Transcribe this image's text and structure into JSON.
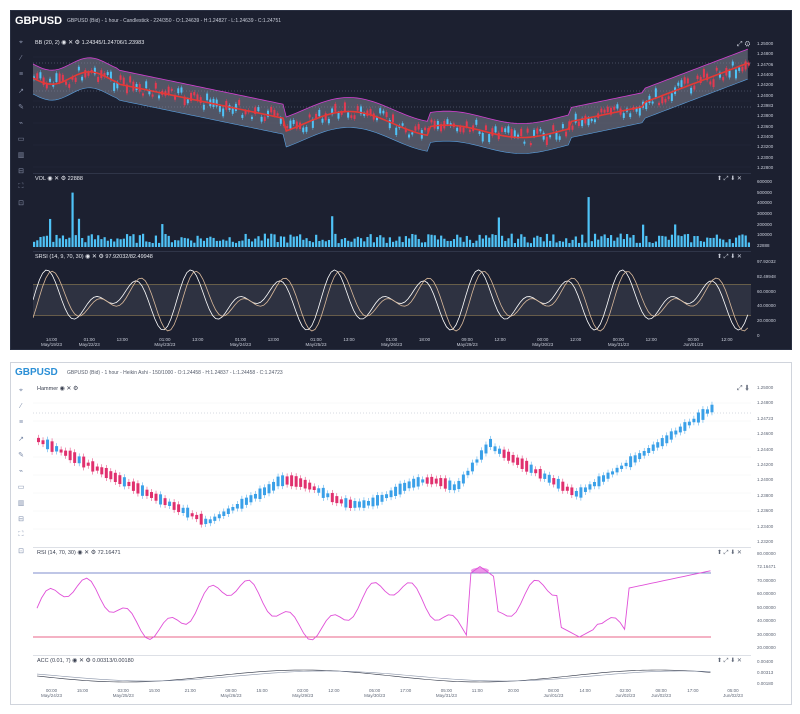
{
  "top_panel": {
    "symbol": "GBPUSD",
    "info": "GBPUSD (Bid) - 1 hour - Candlestick - 224/350 - O:1.24639 - H:1.24827 - L:1.24639 - C:1.24751",
    "indicator1": {
      "label": "BB (20, 2)",
      "values": "1.24345/1.24706/1.23983"
    },
    "indicator2": {
      "label": "VOL",
      "value": "22888"
    },
    "indicator3": {
      "label": "SRSI (14, 9, 70, 30)",
      "values": "97.92032/82.49948"
    },
    "price_axis": [
      "1.25000",
      "1.24800",
      "1.24706",
      "1.24400",
      "1.24200",
      "1.24000",
      "1.23983",
      "1.23800",
      "1.23600",
      "1.23400",
      "1.23200",
      "1.23000",
      "1.22800"
    ],
    "price_badges": {
      "close": "1.24751",
      "upper": "1.24706",
      "lower": "1.23983"
    },
    "volume_axis": [
      "600000",
      "500000",
      "400000",
      "300000",
      "200000",
      "100000",
      "22888"
    ],
    "srsi_axis": [
      "97.92032",
      "82.49948",
      "60.00000",
      "40.00000",
      "20.00000",
      "0"
    ],
    "x_labels": [
      {
        "t": "14:00",
        "d": "May/19/23"
      },
      {
        "t": "01:00",
        "d": "May/22/23"
      },
      {
        "t": "13:00",
        "d": ""
      },
      {
        "t": "01:00",
        "d": "May/23/23"
      },
      {
        "t": "13:00",
        "d": ""
      },
      {
        "t": "01:00",
        "d": "May/24/23"
      },
      {
        "t": "13:00",
        "d": ""
      },
      {
        "t": "01:00",
        "d": "May/25/23"
      },
      {
        "t": "13:00",
        "d": ""
      },
      {
        "t": "01:00",
        "d": "May/26/23"
      },
      {
        "t": "18:00",
        "d": ""
      },
      {
        "t": "09:00",
        "d": "May/29/23"
      },
      {
        "t": "12:00",
        "d": ""
      },
      {
        "t": "00:00",
        "d": "May/30/23"
      },
      {
        "t": "12:00",
        "d": ""
      },
      {
        "t": "00:00",
        "d": "May/31/23"
      },
      {
        "t": "12:00",
        "d": ""
      },
      {
        "t": "00:00",
        "d": "Jun/01/23"
      },
      {
        "t": "12:00",
        "d": ""
      }
    ],
    "colors": {
      "bg": "#1c2030",
      "bullish": "#4fc3f7",
      "bearish": "#e53950",
      "middle_band": "#e53935",
      "outer_band": "#d43fd2",
      "volume": "#4fc3f7"
    }
  },
  "bottom_panel": {
    "symbol": "GBPUSD",
    "info": "GBPUSD (Bid) - 1 hour - Heikin Ashi - 150/1000 - O:1.24458 - H:1.24837 - L:1.24458 - C:1.24723",
    "indicator1": {
      "label": "Hammer"
    },
    "indicator2": {
      "label": "RSI (14, 70, 30)",
      "value": "72.16471"
    },
    "indicator3": {
      "label": "ACC (0.01, 7)",
      "values": "0.00313/0.00180"
    },
    "price_axis": [
      "1.25000",
      "1.24800",
      "1.24723",
      "1.24600",
      "1.24400",
      "1.24200",
      "1.24000",
      "1.23800",
      "1.23600",
      "1.23400",
      "1.23200"
    ],
    "price_badge": "1.24723",
    "rsi_axis": [
      "80.00000",
      "72.16471",
      "70.00000",
      "60.00000",
      "50.00000",
      "40.00000",
      "30.00000",
      "20.00000"
    ],
    "acc_axis": [
      "0.00400",
      "0.00313",
      "0.00180"
    ],
    "x_labels": [
      {
        "t": "00:00",
        "d": "May/24/23"
      },
      {
        "t": "15:00",
        "d": ""
      },
      {
        "t": "03:00",
        "d": "May/25/23"
      },
      {
        "t": "15:00",
        "d": ""
      },
      {
        "t": "21:00",
        "d": ""
      },
      {
        "t": "09:00",
        "d": "May/26/23"
      },
      {
        "t": "15:00",
        "d": ""
      },
      {
        "t": "03:00",
        "d": "May/29/23"
      },
      {
        "t": "12:00",
        "d": ""
      },
      {
        "t": "05:00",
        "d": "May/30/23"
      },
      {
        "t": "17:00",
        "d": ""
      },
      {
        "t": "05:00",
        "d": "May/31/23"
      },
      {
        "t": "11:00",
        "d": ""
      },
      {
        "t": "20:00",
        "d": ""
      },
      {
        "t": "08:00",
        "d": "Jun/01/23"
      },
      {
        "t": "14:00",
        "d": ""
      },
      {
        "t": "02:00",
        "d": "Jun/02/23"
      },
      {
        "t": "08:00",
        "d": "Jun/02/23"
      },
      {
        "t": "17:00",
        "d": ""
      },
      {
        "t": "05:00",
        "d": "Jun/02/23"
      }
    ],
    "colors": {
      "bg": "#ffffff",
      "bullish": "#3aa0e8",
      "bearish": "#e0306e",
      "rsi": "#e050d8",
      "rsi_hi": "#5566bb",
      "rsi_lo": "#e03060",
      "acc": "#6a7080"
    }
  },
  "toolbar_icons": [
    "crosshair-icon",
    "line-icon",
    "horizontal-line-icon",
    "trend-line-icon",
    "pencil-icon",
    "brush-icon",
    "delete-icon",
    "bar-chart-icon",
    "split-icon",
    "fullscreen-icon",
    "zoom-icon"
  ],
  "pane_controls": [
    "eye-icon",
    "close-icon",
    "gear-icon"
  ],
  "window_controls": [
    "arrow-up-icon",
    "expand-icon",
    "arrow-down-icon",
    "close-icon"
  ]
}
